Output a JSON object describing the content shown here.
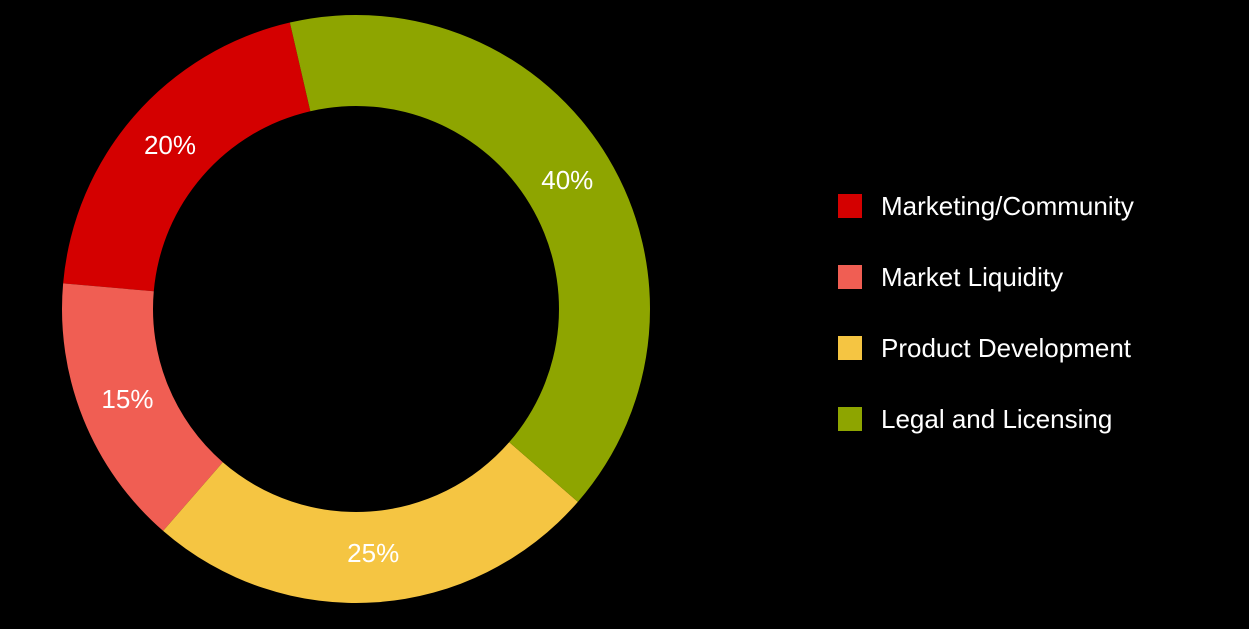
{
  "chart_data": {
    "type": "pie",
    "variant": "donut",
    "categories": [
      "Marketing/Community",
      "Market Liquidity",
      "Product Development",
      "Legal and Licensing"
    ],
    "values": [
      20,
      15,
      25,
      40
    ],
    "labels": [
      "20%",
      "15%",
      "25%",
      "40%"
    ],
    "colors": [
      "#d40000",
      "#f05e53",
      "#f5c542",
      "#8ea500"
    ],
    "unit": "%",
    "legend_position": "right",
    "background": "#000000"
  }
}
